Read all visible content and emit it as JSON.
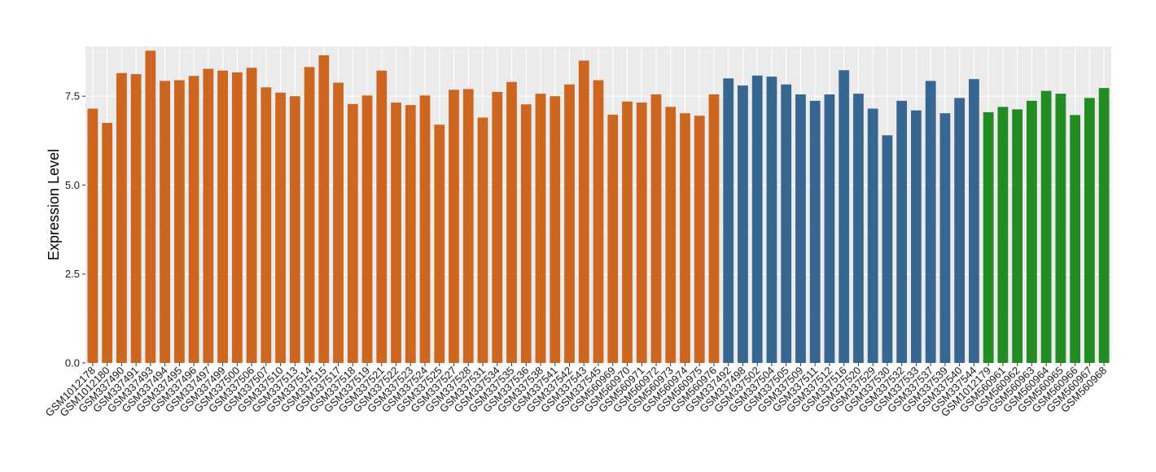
{
  "chart_data": {
    "type": "bar",
    "title": "",
    "xlabel": "",
    "ylabel": "Expression Level",
    "ylim": [
      0,
      8.9
    ],
    "yticks": [
      0.0,
      2.5,
      5.0,
      7.5
    ],
    "ytick_labels": [
      "0.0",
      "2.5",
      "5.0",
      "7.5"
    ],
    "grid": true,
    "legend": "none",
    "background_color": "#ebebeb",
    "categories": [
      "GSM1012178",
      "GSM1012180",
      "GSM337490",
      "GSM337491",
      "GSM337493",
      "GSM337494",
      "GSM337495",
      "GSM337496",
      "GSM337497",
      "GSM337499",
      "GSM337500",
      "GSM337506",
      "GSM337507",
      "GSM337510",
      "GSM337513",
      "GSM337514",
      "GSM337515",
      "GSM337517",
      "GSM337518",
      "GSM337519",
      "GSM337521",
      "GSM337522",
      "GSM337523",
      "GSM337524",
      "GSM337525",
      "GSM337527",
      "GSM337528",
      "GSM337531",
      "GSM337534",
      "GSM337535",
      "GSM337536",
      "GSM337538",
      "GSM337541",
      "GSM337542",
      "GSM337543",
      "GSM337545",
      "GSM560969",
      "GSM560970",
      "GSM560971",
      "GSM560972",
      "GSM560973",
      "GSM560974",
      "GSM560975",
      "GSM560976",
      "GSM337492",
      "GSM337498",
      "GSM337502",
      "GSM337504",
      "GSM337505",
      "GSM337509",
      "GSM337511",
      "GSM337512",
      "GSM337516",
      "GSM337520",
      "GSM337529",
      "GSM337530",
      "GSM337532",
      "GSM337533",
      "GSM337537",
      "GSM337539",
      "GSM337540",
      "GSM337544",
      "GSM1012179",
      "GSM560961",
      "GSM560962",
      "GSM560963",
      "GSM560964",
      "GSM560965",
      "GSM560966",
      "GSM560967",
      "GSM560968"
    ],
    "values": [
      7.15,
      6.75,
      8.15,
      8.12,
      8.78,
      7.93,
      7.95,
      8.07,
      8.27,
      8.22,
      8.17,
      8.3,
      7.75,
      7.6,
      7.5,
      8.32,
      8.65,
      7.88,
      7.28,
      7.52,
      8.22,
      7.32,
      7.25,
      7.52,
      6.7,
      7.68,
      7.7,
      6.9,
      7.62,
      7.9,
      7.27,
      7.57,
      7.5,
      7.83,
      8.5,
      7.95,
      6.98,
      7.35,
      7.32,
      7.55,
      7.2,
      7.02,
      6.95,
      7.55,
      8.0,
      7.8,
      8.08,
      8.05,
      7.83,
      7.55,
      7.37,
      7.55,
      8.23,
      7.57,
      7.15,
      6.4,
      7.37,
      7.1,
      7.93,
      7.02,
      7.45,
      7.98,
      7.05,
      7.2,
      7.13,
      7.37,
      7.65,
      7.57,
      6.97,
      7.45,
      7.73
    ],
    "groups": [
      {
        "color": "#cd6620",
        "count": 44
      },
      {
        "color": "#376691",
        "count": 18
      },
      {
        "color": "#238b23",
        "count": 9
      }
    ]
  }
}
